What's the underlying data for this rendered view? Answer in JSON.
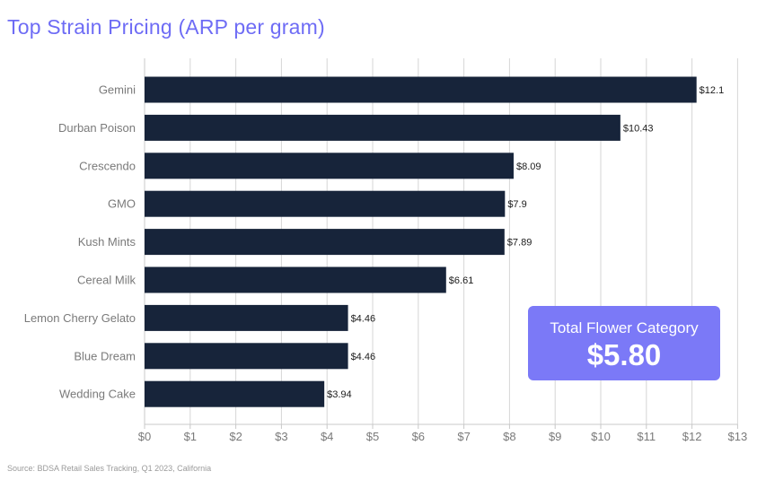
{
  "title": "Top Strain Pricing (ARP per gram)",
  "source": "Source: BDSA Retail Sales Tracking, Q1 2023, California",
  "callout": {
    "label": "Total Flower Category",
    "value": "$5.80"
  },
  "colors": {
    "title": "#6e6cf5",
    "bar": "#17243a",
    "callout": "#7b79f7",
    "grid": "#d6d6d6",
    "label": "#7a7a7a"
  },
  "chart_data": {
    "type": "bar",
    "orientation": "horizontal",
    "categories": [
      "Gemini",
      "Durban Poison",
      "Crescendo",
      "GMO",
      "Kush Mints",
      "Cereal Milk",
      "Lemon Cherry Gelato",
      "Blue Dream",
      "Wedding Cake"
    ],
    "values": [
      12.1,
      10.43,
      8.09,
      7.9,
      7.89,
      6.61,
      4.46,
      4.46,
      3.94
    ],
    "data_labels": [
      "$12.1",
      "$10.43",
      "$8.09",
      "$7.9",
      "$7.89",
      "$6.61",
      "$4.46",
      "$4.46",
      "$3.94"
    ],
    "x_ticks": [
      0,
      1,
      2,
      3,
      4,
      5,
      6,
      7,
      8,
      9,
      10,
      11,
      12,
      13
    ],
    "x_tick_labels": [
      "$0",
      "$1",
      "$2",
      "$3",
      "$4",
      "$5",
      "$6",
      "$7",
      "$8",
      "$9",
      "$10",
      "$11",
      "$12",
      "$13"
    ],
    "xlim": [
      0,
      13
    ],
    "grid": true,
    "legend": "none"
  }
}
